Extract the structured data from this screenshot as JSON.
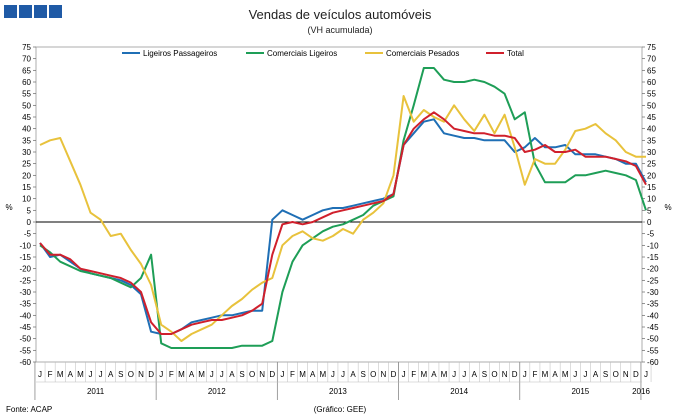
{
  "header_squares": [
    "#1f5aa6",
    "#1f5aa6",
    "#1f5aa6",
    "#1f5aa6"
  ],
  "chart_data": {
    "type": "line",
    "title": "Vendas de veículos automóveis",
    "subtitle": "(VH acumulada)",
    "ylabel_left": "%",
    "ylabel_right": "%",
    "ylim": [
      -60,
      75
    ],
    "yticks": [
      -60,
      -55,
      -50,
      -45,
      -40,
      -35,
      -30,
      -25,
      -20,
      -15,
      -10,
      -5,
      0,
      5,
      10,
      15,
      20,
      25,
      30,
      35,
      40,
      45,
      50,
      55,
      60,
      65,
      70,
      75
    ],
    "x_month_labels": [
      "J",
      "F",
      "M",
      "A",
      "M",
      "J",
      "J",
      "A",
      "S",
      "O",
      "N",
      "D",
      "J",
      "F",
      "M",
      "A",
      "M",
      "J",
      "J",
      "A",
      "S",
      "O",
      "N",
      "D",
      "J",
      "F",
      "M",
      "A",
      "M",
      "J",
      "J",
      "A",
      "S",
      "O",
      "N",
      "D",
      "J",
      "F",
      "M",
      "A",
      "M",
      "J",
      "J",
      "A",
      "S",
      "O",
      "N",
      "D",
      "J",
      "F",
      "M",
      "A",
      "M",
      "J",
      "J",
      "A",
      "S",
      "O",
      "N",
      "D",
      "J"
    ],
    "x_year_labels": [
      "2011",
      "2012",
      "2013",
      "2014",
      "2015",
      "2016"
    ],
    "legend": [
      "Ligeiros Passageiros",
      "Comerciais Ligeiros",
      "Comerciais Pesados",
      "Total"
    ],
    "series": [
      {
        "name": "Ligeiros Passageiros",
        "color": "#1f6fb5",
        "values": [
          -9,
          -15,
          -14,
          -17,
          -20,
          -22,
          -23,
          -24,
          -25,
          -27,
          -31,
          -47,
          -48,
          -48,
          -46,
          -43,
          -42,
          -41,
          -40,
          -40,
          -39,
          -38,
          -38,
          1,
          5,
          3,
          1,
          3,
          5,
          6,
          6,
          7,
          8,
          9,
          10,
          12,
          33,
          38,
          43,
          44,
          38,
          37,
          36,
          36,
          35,
          35,
          35,
          30,
          32,
          36,
          32,
          32,
          33,
          29,
          29,
          29,
          28,
          27,
          25,
          25,
          17
        ]
      },
      {
        "name": "Comerciais Ligeiros",
        "color": "#1e9e57",
        "values": [
          -10,
          -13,
          -17,
          -19,
          -21,
          -22,
          -23,
          -24,
          -26,
          -28,
          -24,
          -14,
          -52,
          -54,
          -54,
          -54,
          -54,
          -54,
          -54,
          -54,
          -53,
          -53,
          -53,
          -51,
          -30,
          -17,
          -10,
          -7,
          -4,
          -2,
          -1,
          1,
          3,
          7,
          9,
          11,
          35,
          50,
          66,
          66,
          61,
          60,
          60,
          61,
          60,
          58,
          55,
          44,
          47,
          25,
          17,
          17,
          17,
          20,
          20,
          21,
          22,
          21,
          20,
          18,
          5
        ]
      },
      {
        "name": "Comerciais Pesados",
        "color": "#e8c23c",
        "values": [
          33,
          35,
          36,
          26,
          16,
          4,
          1,
          -6,
          -5,
          -12,
          -18,
          -27,
          -44,
          -47,
          -51,
          -48,
          -46,
          -44,
          -40,
          -36,
          -33,
          -29,
          -26,
          -24,
          -10,
          -6,
          -4,
          -7,
          -8,
          -6,
          -3,
          -5,
          1,
          4,
          8,
          20,
          54,
          43,
          48,
          45,
          43,
          50,
          44,
          39,
          46,
          38,
          46,
          32,
          16,
          27,
          25,
          25,
          31,
          39,
          40,
          42,
          38,
          35,
          30,
          28,
          28
        ]
      },
      {
        "name": "Total",
        "color": "#d0202c",
        "values": [
          -9,
          -14,
          -14,
          -16,
          -20,
          -21,
          -22,
          -23,
          -24,
          -26,
          -30,
          -43,
          -48,
          -48,
          -46,
          -44,
          -43,
          -42,
          -42,
          -41,
          -40,
          -38,
          -35,
          -14,
          -1,
          0,
          -1,
          0,
          2,
          4,
          5,
          6,
          7,
          8,
          9,
          12,
          33,
          40,
          44,
          47,
          44,
          40,
          39,
          38,
          38,
          37,
          37,
          36,
          30,
          31,
          33,
          30,
          30,
          31,
          28,
          28,
          28,
          27,
          26,
          24,
          16
        ]
      }
    ]
  },
  "footer": {
    "source": "Fonte: ACAP",
    "graphic_credit": "(Gráfico: GEE)"
  }
}
